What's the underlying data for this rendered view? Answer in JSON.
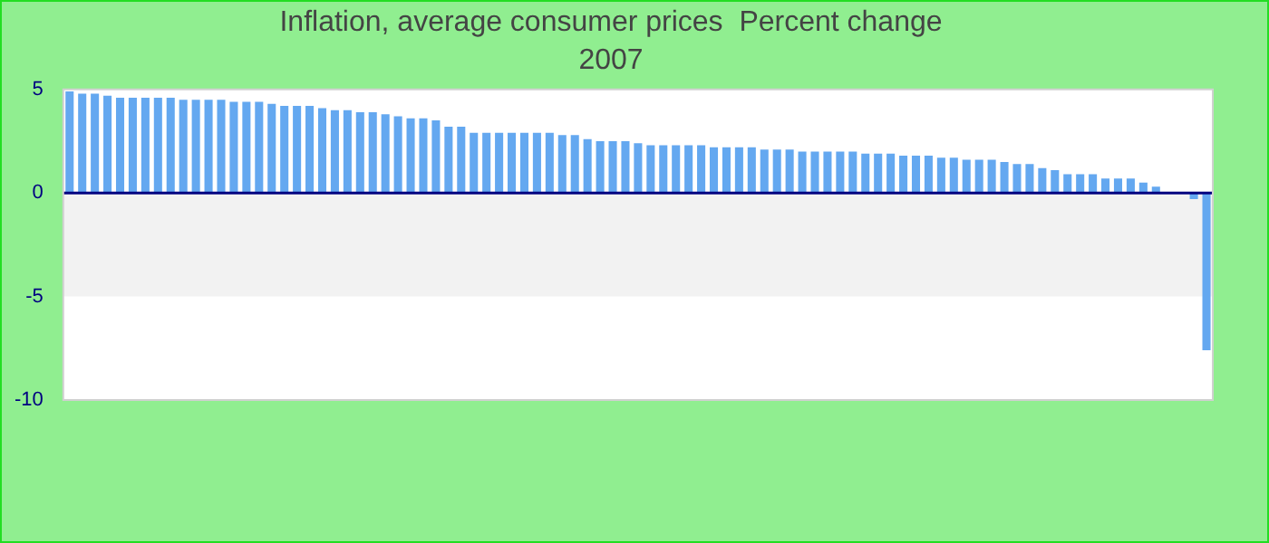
{
  "chart_data": {
    "type": "bar",
    "title": "Inflation, average consumer prices  Percent change",
    "subtitle": "2007",
    "categories": [
      null,
      null,
      null,
      null,
      null,
      null,
      null,
      null,
      null,
      null,
      null,
      null,
      null,
      null,
      null,
      null,
      null,
      null,
      null,
      null,
      null,
      null,
      null,
      null,
      null,
      null,
      null,
      null,
      null,
      null,
      null,
      null,
      null,
      null,
      null,
      null,
      null,
      null,
      null,
      null,
      null,
      null,
      null,
      null,
      null,
      null,
      null,
      null,
      null,
      null,
      null,
      null,
      null,
      null,
      null,
      null,
      null,
      null,
      null,
      null,
      null,
      null,
      null,
      null,
      null,
      null,
      null,
      null,
      null,
      null,
      null,
      null,
      null,
      null,
      null,
      null,
      null,
      null,
      null,
      null,
      null,
      null,
      null,
      null,
      null,
      null,
      null,
      null,
      null,
      null,
      null
    ],
    "values": [
      4.9,
      4.8,
      4.8,
      4.7,
      4.6,
      4.6,
      4.6,
      4.6,
      4.6,
      4.5,
      4.5,
      4.5,
      4.5,
      4.4,
      4.4,
      4.4,
      4.3,
      4.2,
      4.2,
      4.2,
      4.1,
      4.0,
      4.0,
      3.9,
      3.9,
      3.8,
      3.7,
      3.6,
      3.6,
      3.5,
      3.2,
      3.2,
      2.9,
      2.9,
      2.9,
      2.9,
      2.9,
      2.9,
      2.9,
      2.8,
      2.8,
      2.6,
      2.5,
      2.5,
      2.5,
      2.4,
      2.3,
      2.3,
      2.3,
      2.3,
      2.3,
      2.2,
      2.2,
      2.2,
      2.2,
      2.1,
      2.1,
      2.1,
      2.0,
      2.0,
      2.0,
      2.0,
      2.0,
      1.9,
      1.9,
      1.9,
      1.8,
      1.8,
      1.8,
      1.7,
      1.7,
      1.6,
      1.6,
      1.6,
      1.5,
      1.4,
      1.4,
      1.2,
      1.1,
      0.9,
      0.9,
      0.9,
      0.7,
      0.7,
      0.7,
      0.5,
      0.3,
      0,
      0,
      -0.3,
      -7.6
    ],
    "color": "#64a8f0",
    "ylim": [
      -10,
      5
    ],
    "yticks": [
      -10,
      -5,
      0,
      5
    ],
    "tick_labels": "y",
    "grid": false,
    "bands": [
      {
        "axis": "y",
        "from": -5,
        "to": 0,
        "color": "#f2f2f2"
      }
    ],
    "ref_lines": [
      {
        "axis": "y",
        "value": 0,
        "color": "#000080"
      }
    ]
  }
}
